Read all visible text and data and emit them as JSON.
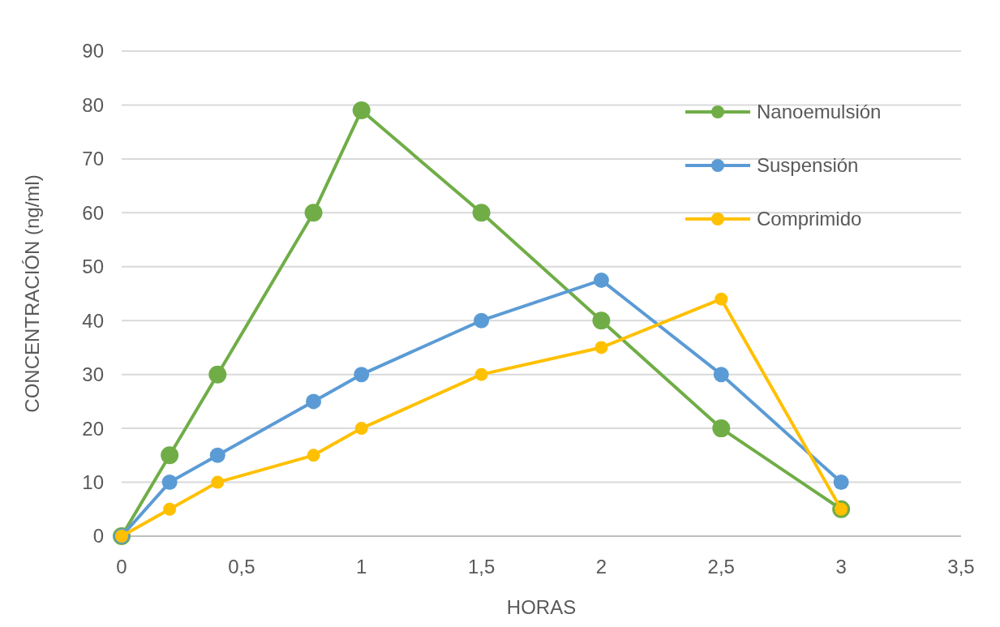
{
  "chart_data": {
    "type": "line",
    "xlabel": "HORAS",
    "ylabel": "CONCENTRACIÓN (ng/ml)",
    "xlim": [
      0,
      3.5
    ],
    "xticks": [
      0,
      {
        "value": 0.5,
        "label": "0,5"
      },
      1,
      {
        "value": 1.5,
        "label": "1,5"
      },
      2,
      {
        "value": 2.5,
        "label": "2,5"
      },
      3,
      {
        "value": 3.5,
        "label": "3,5"
      }
    ],
    "ylim": [
      0,
      90
    ],
    "yticks": [
      0,
      10,
      20,
      30,
      40,
      50,
      60,
      70,
      80,
      90
    ],
    "grid": "y",
    "legend": "top right",
    "marker": "circle",
    "line_style": "solid",
    "series": [
      {
        "name": "Nanoemulsión",
        "color": "#70ad47",
        "x": [
          0,
          0.2,
          0.4,
          0.8,
          1,
          1.5,
          2,
          2.5,
          3
        ],
        "values": [
          0,
          15,
          30,
          60,
          79,
          60,
          40,
          20,
          5
        ]
      },
      {
        "name": "Suspensión",
        "color": "#5b9bd5",
        "x": [
          0,
          0.2,
          0.4,
          0.8,
          1,
          1.5,
          2,
          2.5,
          3
        ],
        "values": [
          0,
          10,
          15,
          25,
          30,
          40,
          47.5,
          30,
          10
        ]
      },
      {
        "name": "Comprimido",
        "color": "#ffc000",
        "x": [
          0,
          0.2,
          0.4,
          0.8,
          1,
          1.5,
          2,
          2.5,
          3
        ],
        "values": [
          0,
          5,
          10,
          15,
          20,
          30,
          35,
          44,
          5
        ]
      }
    ]
  }
}
